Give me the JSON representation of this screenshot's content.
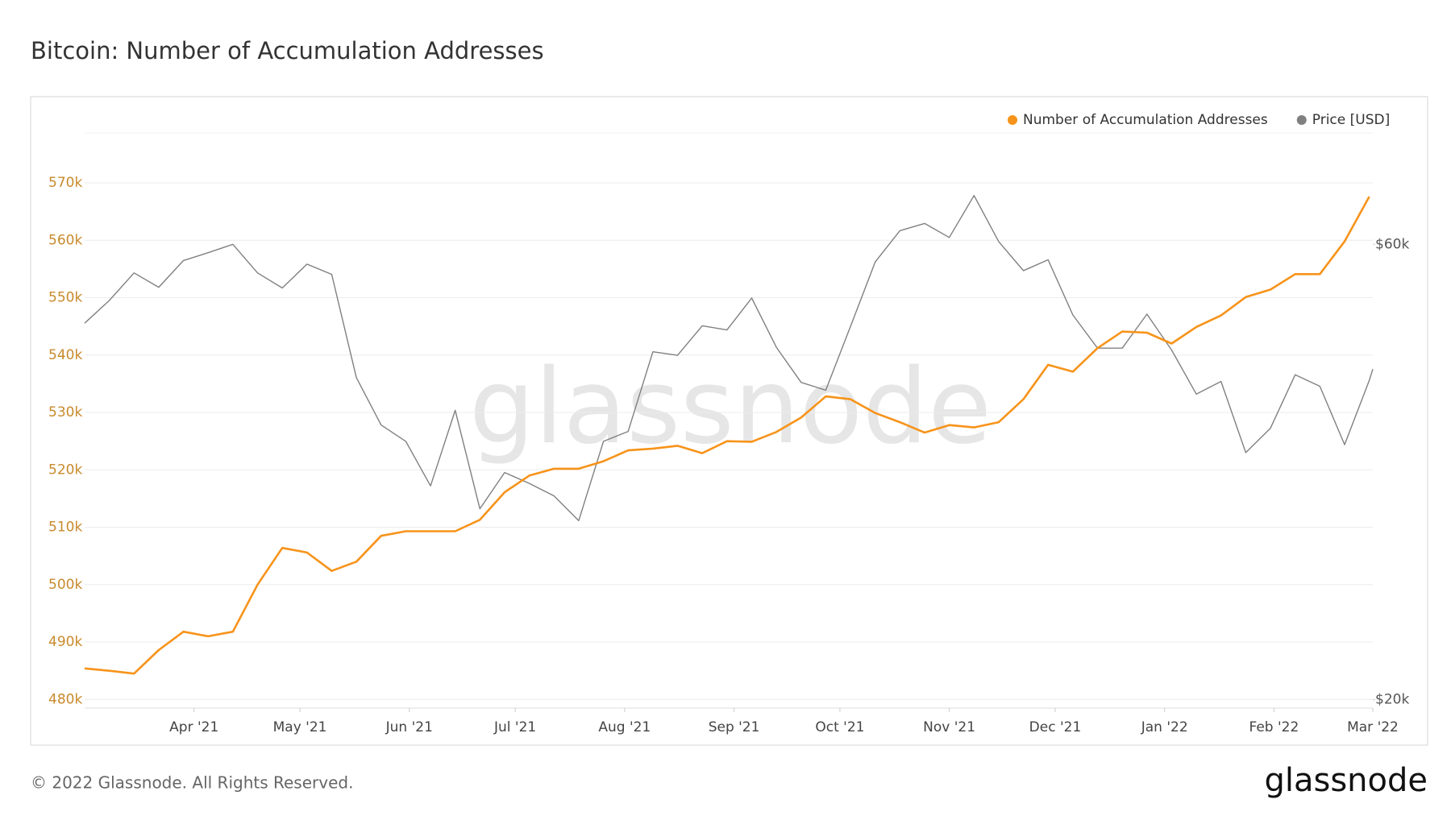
{
  "chart_data": {
    "type": "line",
    "title": "Bitcoin: Number of Accumulation Addresses",
    "watermark": "glassnode",
    "footer": "© 2022 Glassnode. All Rights Reserved.",
    "logo": "glassnode",
    "x": [
      "2021-03-01",
      "2021-03-08",
      "2021-03-15",
      "2021-03-22",
      "2021-03-29",
      "2021-04-05",
      "2021-04-12",
      "2021-04-19",
      "2021-04-26",
      "2021-05-03",
      "2021-05-10",
      "2021-05-17",
      "2021-05-24",
      "2021-05-31",
      "2021-06-07",
      "2021-06-14",
      "2021-06-21",
      "2021-06-28",
      "2021-07-05",
      "2021-07-12",
      "2021-07-19",
      "2021-07-26",
      "2021-08-02",
      "2021-08-09",
      "2021-08-16",
      "2021-08-23",
      "2021-08-30",
      "2021-09-06",
      "2021-09-13",
      "2021-09-20",
      "2021-09-27",
      "2021-10-04",
      "2021-10-11",
      "2021-10-18",
      "2021-10-25",
      "2021-11-01",
      "2021-11-08",
      "2021-11-15",
      "2021-11-22",
      "2021-11-29",
      "2021-12-06",
      "2021-12-13",
      "2021-12-20",
      "2021-12-27",
      "2022-01-03",
      "2022-01-10",
      "2022-01-17",
      "2022-01-24",
      "2022-01-31",
      "2022-02-07",
      "2022-02-14",
      "2022-02-21",
      "2022-02-28",
      "2022-03-01"
    ],
    "xlim": [
      "2021-03-01",
      "2022-03-01"
    ],
    "xticks": [
      {
        "value": "2021-04-01",
        "label": "Apr '21"
      },
      {
        "value": "2021-05-01",
        "label": "May '21"
      },
      {
        "value": "2021-06-01",
        "label": "Jun '21"
      },
      {
        "value": "2021-07-01",
        "label": "Jul '21"
      },
      {
        "value": "2021-08-01",
        "label": "Aug '21"
      },
      {
        "value": "2021-09-01",
        "label": "Sep '21"
      },
      {
        "value": "2021-10-01",
        "label": "Oct '21"
      },
      {
        "value": "2021-11-01",
        "label": "Nov '21"
      },
      {
        "value": "2021-12-01",
        "label": "Dec '21"
      },
      {
        "value": "2022-01-01",
        "label": "Jan '22"
      },
      {
        "value": "2022-02-01",
        "label": "Feb '22"
      },
      {
        "value": "2022-03-01",
        "label": "Mar '22"
      }
    ],
    "ylim": [
      478500,
      578700
    ],
    "yticks": [
      {
        "value": 480000,
        "label": "480k"
      },
      {
        "value": 490000,
        "label": "490k"
      },
      {
        "value": 500000,
        "label": "500k"
      },
      {
        "value": 510000,
        "label": "510k"
      },
      {
        "value": 520000,
        "label": "520k"
      },
      {
        "value": 530000,
        "label": "530k"
      },
      {
        "value": 540000,
        "label": "540k"
      },
      {
        "value": 550000,
        "label": "550k"
      },
      {
        "value": 560000,
        "label": "560k"
      },
      {
        "value": 570000,
        "label": "570k"
      }
    ],
    "y2lim": [
      19600,
      78500
    ],
    "y2log": true,
    "y2ticks": [
      {
        "value": 20000,
        "label": "$20k"
      },
      {
        "value": 60000,
        "label": "$60k"
      }
    ],
    "grid": true,
    "legend": "top-right",
    "series": [
      {
        "name": "Number of Accumulation Addresses",
        "color": "#f7931a",
        "values": [
          485400,
          485000,
          484500,
          488600,
          491800,
          491000,
          491800,
          500000,
          506400,
          505600,
          502400,
          504000,
          508500,
          509300,
          509300,
          509300,
          511300,
          516100,
          519000,
          520200,
          520200,
          521500,
          523400,
          523700,
          524200,
          522900,
          525000,
          524900,
          526600,
          529100,
          532800,
          532300,
          529900,
          528300,
          526500,
          527800,
          527400,
          528300,
          532300,
          538300,
          537100,
          541200,
          544100,
          543900,
          542000,
          544900,
          546900,
          550100,
          551400,
          554100,
          554100,
          559800,
          567600,
          null
        ]
      },
      {
        "name": "Price [USD]",
        "color": "#808080",
        "axis": "y2",
        "values": [
          49600,
          52400,
          56000,
          54100,
          57700,
          58800,
          60000,
          56000,
          54000,
          57200,
          55800,
          43500,
          38800,
          37300,
          33500,
          40200,
          31700,
          34600,
          33700,
          32700,
          30800,
          37300,
          38200,
          46300,
          45900,
          49300,
          48800,
          52700,
          46800,
          43000,
          42200,
          49200,
          57500,
          62000,
          63100,
          61000,
          67500,
          60400,
          56300,
          57800,
          50600,
          46700,
          46700,
          50700,
          46500,
          41800,
          43100,
          36300,
          38500,
          43800,
          42600,
          37000,
          43200,
          44400
        ]
      }
    ]
  }
}
